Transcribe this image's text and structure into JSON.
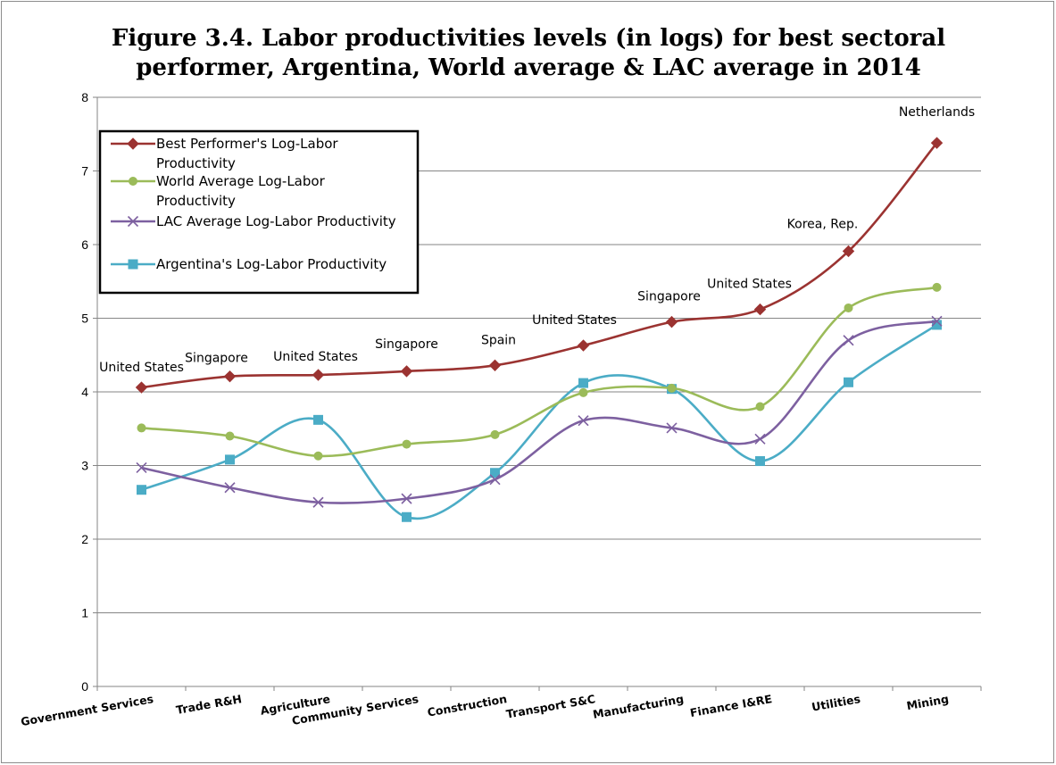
{
  "chart_data": {
    "type": "line",
    "title_lines": [
      "Figure 3.4. Labor productivities  levels (in logs) for best sectoral",
      "performer, Argentina, World average & LAC average in 2014"
    ],
    "xlabel": "",
    "ylabel": "",
    "ylim": [
      0,
      8
    ],
    "yticks": [
      "0",
      "1",
      "2",
      "3",
      "4",
      "5",
      "6",
      "7",
      "8"
    ],
    "grid": "horizontal",
    "categories": [
      "Government Services",
      "Trade R&H",
      "Agriculture",
      "Community Services",
      "Construction",
      "Transport S&C",
      "Manufacturing",
      "Finance I&RE",
      "Utilities",
      "Mining"
    ],
    "series": [
      {
        "name_lines": [
          "Best Performer's Log-Labor",
          "Productivity"
        ],
        "color": "#9b3331",
        "marker": "diamond",
        "values": [
          4.06,
          4.21,
          4.23,
          4.28,
          4.36,
          4.63,
          4.95,
          5.12,
          5.91,
          7.38
        ]
      },
      {
        "name_lines": [
          "World Average Log-Labor",
          "Productivity"
        ],
        "color": "#9bbb59",
        "marker": "circle",
        "values": [
          3.51,
          3.4,
          3.13,
          3.29,
          3.42,
          3.99,
          4.05,
          3.8,
          5.14,
          5.42
        ]
      },
      {
        "name_lines": [
          "LAC Average Log-Labor Productivity"
        ],
        "color": "#7d60a0",
        "marker": "x",
        "values": [
          2.97,
          2.7,
          2.5,
          2.55,
          2.81,
          3.61,
          3.51,
          3.36,
          4.7,
          4.96
        ]
      },
      {
        "name_lines": [
          "Argentina's Log-Labor Productivity"
        ],
        "color": "#4bacc6",
        "marker": "square",
        "values": [
          2.67,
          3.08,
          3.62,
          2.3,
          2.9,
          4.12,
          4.04,
          3.06,
          4.13,
          4.91
        ]
      }
    ],
    "annotations": [
      "United States",
      "Singapore",
      "United States",
      "Singapore",
      "Spain",
      "United States",
      "Singapore",
      "United States",
      "Korea, Rep.",
      "Netherlands"
    ],
    "legend_position": "top-left"
  }
}
